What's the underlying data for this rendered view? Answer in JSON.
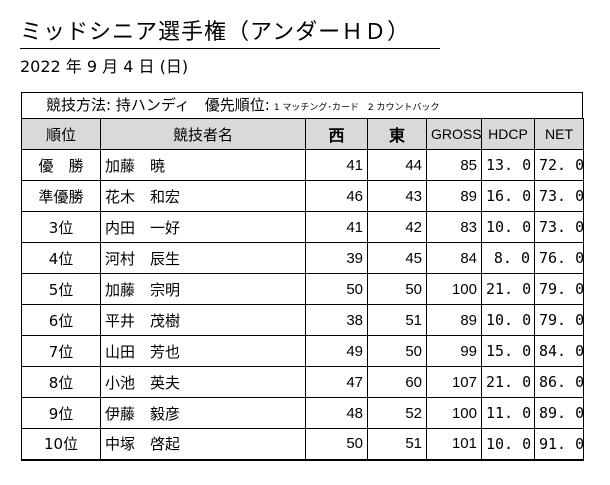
{
  "document": {
    "title": "ミッドシニア選手権（アンダーＨＤ）",
    "date": "2022 年 9 月 4 日 (日)",
    "rules": {
      "main": "競技方法: 持ハンディ　優先順位:",
      "priority": "1 マッチング･カード　2 カウントバック"
    }
  },
  "table": {
    "headers": {
      "rank": "順位",
      "player": "競技者名",
      "west": "西",
      "east": "東",
      "gross": "GROSS",
      "hdcp": "HDCP",
      "net": "NET"
    },
    "rows": [
      {
        "rank": "優　勝",
        "name": "加藤　暁",
        "west": "41",
        "east": "44",
        "gross": "85",
        "hdcp": "13. 0",
        "net": "72. 0"
      },
      {
        "rank": "準優勝",
        "name": "花木　和宏",
        "west": "46",
        "east": "43",
        "gross": "89",
        "hdcp": "16. 0",
        "net": "73. 0"
      },
      {
        "rank": "3位",
        "name": "内田　一好",
        "west": "41",
        "east": "42",
        "gross": "83",
        "hdcp": "10. 0",
        "net": "73. 0"
      },
      {
        "rank": "4位",
        "name": "河村　辰生",
        "west": "39",
        "east": "45",
        "gross": "84",
        "hdcp": "8. 0",
        "net": "76. 0"
      },
      {
        "rank": "5位",
        "name": "加藤　宗明",
        "west": "50",
        "east": "50",
        "gross": "100",
        "hdcp": "21. 0",
        "net": "79. 0"
      },
      {
        "rank": "6位",
        "name": "平井　茂樹",
        "west": "38",
        "east": "51",
        "gross": "89",
        "hdcp": "10. 0",
        "net": "79. 0"
      },
      {
        "rank": "7位",
        "name": "山田　芳也",
        "west": "49",
        "east": "50",
        "gross": "99",
        "hdcp": "15. 0",
        "net": "84. 0"
      },
      {
        "rank": "8位",
        "name": "小池　英夫",
        "west": "47",
        "east": "60",
        "gross": "107",
        "hdcp": "21. 0",
        "net": "86. 0"
      },
      {
        "rank": "9位",
        "name": "伊藤　毅彦",
        "west": "48",
        "east": "52",
        "gross": "100",
        "hdcp": "11. 0",
        "net": "89. 0"
      },
      {
        "rank": "10位",
        "name": "中塚　啓起",
        "west": "50",
        "east": "51",
        "gross": "101",
        "hdcp": "10. 0",
        "net": "91. 0"
      }
    ]
  }
}
